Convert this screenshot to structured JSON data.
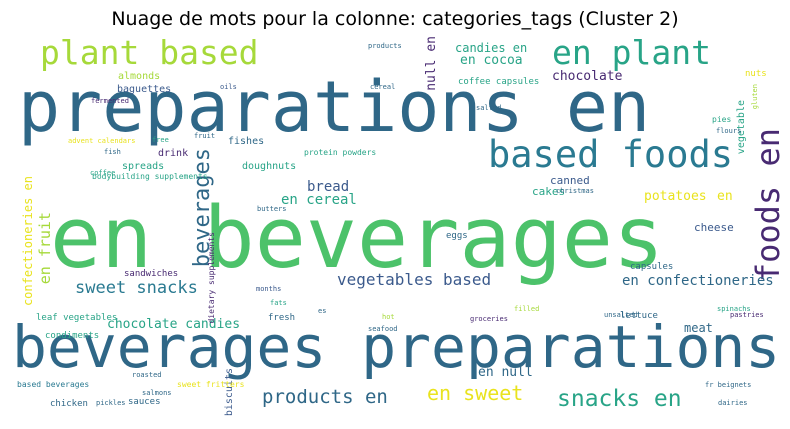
{
  "title": "Nuage de mots pour la colonne: categories_tags (Cluster 2)",
  "palette": {
    "dark_blue": "#2f6787",
    "teal": "#28a487",
    "green": "#4cc26a",
    "lime": "#a6d93a",
    "purple": "#482a72",
    "yellow": "#e9e31e",
    "steel": "#3b5a8c",
    "blue": "#2a7a91"
  },
  "words": [
    {
      "text": "preparations en",
      "color": "#2f6787"
    },
    {
      "text": "en beverages",
      "color": "#4cc26a"
    },
    {
      "text": "beverages preparations",
      "color": "#2f6787"
    },
    {
      "text": "plant based",
      "color": "#a6d93a"
    },
    {
      "text": "en plant",
      "color": "#28a487"
    },
    {
      "text": "based foods",
      "color": "#2a7a91"
    },
    {
      "text": "foods en",
      "color": "#482a72"
    },
    {
      "text": "beverages",
      "color": "#2f6787"
    },
    {
      "text": "sweet snacks",
      "color": "#2a7a91"
    },
    {
      "text": "vegetables based",
      "color": "#3b5a8c"
    },
    {
      "text": "snacks en",
      "color": "#28a487"
    },
    {
      "text": "products en",
      "color": "#2f6787"
    },
    {
      "text": "en sweet",
      "color": "#e9e31e"
    },
    {
      "text": "chocolate candies",
      "color": "#28a487"
    },
    {
      "text": "en confectioneries",
      "color": "#2f6787"
    },
    {
      "text": "en cocoa",
      "color": "#28a487"
    },
    {
      "text": "candies en",
      "color": "#28a487"
    },
    {
      "text": "chocolate",
      "color": "#482a72"
    },
    {
      "text": "null en",
      "color": "#482a72"
    },
    {
      "text": "bread",
      "color": "#3b5a8c"
    },
    {
      "text": "en cereal",
      "color": "#28a487"
    },
    {
      "text": "potatoes",
      "color": "#e9e31e"
    },
    {
      "text": "en",
      "color": "#e9e31e"
    },
    {
      "text": "confectioneries en",
      "color": "#e9e31e"
    },
    {
      "text": "en fruit",
      "color": "#a6d93a"
    },
    {
      "text": "en null",
      "color": "#2f6787"
    },
    {
      "text": "cheese",
      "color": "#3b5a8c"
    },
    {
      "text": "canned",
      "color": "#3b5a8c"
    },
    {
      "text": "cakes",
      "color": "#28a487"
    },
    {
      "text": "meat",
      "color": "#2f6787"
    },
    {
      "text": "spreads",
      "color": "#28a487"
    },
    {
      "text": "doughnuts",
      "color": "#28a487"
    },
    {
      "text": "drink",
      "color": "#482a72"
    },
    {
      "text": "fishes",
      "color": "#2f6787"
    },
    {
      "text": "almonds",
      "color": "#a6d93a"
    },
    {
      "text": "baguettes",
      "color": "#3b5a8c"
    },
    {
      "text": "coffee capsules",
      "color": "#28a487"
    },
    {
      "text": "vegetable",
      "color": "#28a487"
    },
    {
      "text": "sandwiches",
      "color": "#482a72"
    },
    {
      "text": "leaf vegetables",
      "color": "#28a487"
    },
    {
      "text": "condiments",
      "color": "#28a487"
    },
    {
      "text": "fresh",
      "color": "#2f6787"
    },
    {
      "text": "lettuce",
      "color": "#2f6787"
    },
    {
      "text": "capsules",
      "color": "#2f6787"
    },
    {
      "text": "biscuits",
      "color": "#3b5a8c"
    },
    {
      "text": "sauces",
      "color": "#2f6787"
    },
    {
      "text": "chicken",
      "color": "#2f6787"
    },
    {
      "text": "sweet fritters",
      "color": "#e9e31e"
    },
    {
      "text": "based beverages",
      "color": "#2a7a91"
    },
    {
      "text": "protein powders",
      "color": "#28a487"
    },
    {
      "text": "bodybuilding supplements",
      "color": "#28a487"
    },
    {
      "text": "dietary supplements",
      "color": "#482a72"
    },
    {
      "text": "nuts",
      "color": "#e9e31e"
    },
    {
      "text": "eggs",
      "color": "#2f6787"
    },
    {
      "text": "christmas",
      "color": "#2f6787"
    },
    {
      "text": "coffee",
      "color": "#28a487"
    },
    {
      "text": "fermented",
      "color": "#482a72"
    },
    {
      "text": "filled",
      "color": "#a6d93a"
    },
    {
      "text": "hot",
      "color": "#a6d93a"
    },
    {
      "text": "pies",
      "color": "#28a487"
    },
    {
      "text": "flours",
      "color": "#2f6787"
    },
    {
      "text": "gluten",
      "color": "#a6d93a"
    },
    {
      "text": "products",
      "color": "#2f6787"
    },
    {
      "text": "oils",
      "color": "#3b5a8c"
    },
    {
      "text": "advent calendars",
      "color": "#e9e31e"
    },
    {
      "text": "free",
      "color": "#28a487"
    },
    {
      "text": "fruit",
      "color": "#2f6787"
    },
    {
      "text": "salted",
      "color": "#2f6787"
    },
    {
      "text": "cereal",
      "color": "#2f6787"
    },
    {
      "text": "fish",
      "color": "#2f6787"
    },
    {
      "text": "spinachs",
      "color": "#28a487"
    },
    {
      "text": "pastries",
      "color": "#482a72"
    },
    {
      "text": "fr beignets",
      "color": "#2f6787"
    },
    {
      "text": "unsalted",
      "color": "#2f6787"
    },
    {
      "text": "roasted",
      "color": "#2f6787"
    },
    {
      "text": "pickles",
      "color": "#2f6787"
    },
    {
      "text": "salmons",
      "color": "#2f6787"
    },
    {
      "text": "seafood",
      "color": "#2f6787"
    },
    {
      "text": "groceries",
      "color": "#482a72"
    },
    {
      "text": "months",
      "color": "#3b5a8c"
    },
    {
      "text": "fats",
      "color": "#28a487"
    },
    {
      "text": "butters",
      "color": "#2f6787"
    },
    {
      "text": "es",
      "color": "#2f6787"
    },
    {
      "text": "dairies",
      "color": "#2f6787"
    }
  ]
}
